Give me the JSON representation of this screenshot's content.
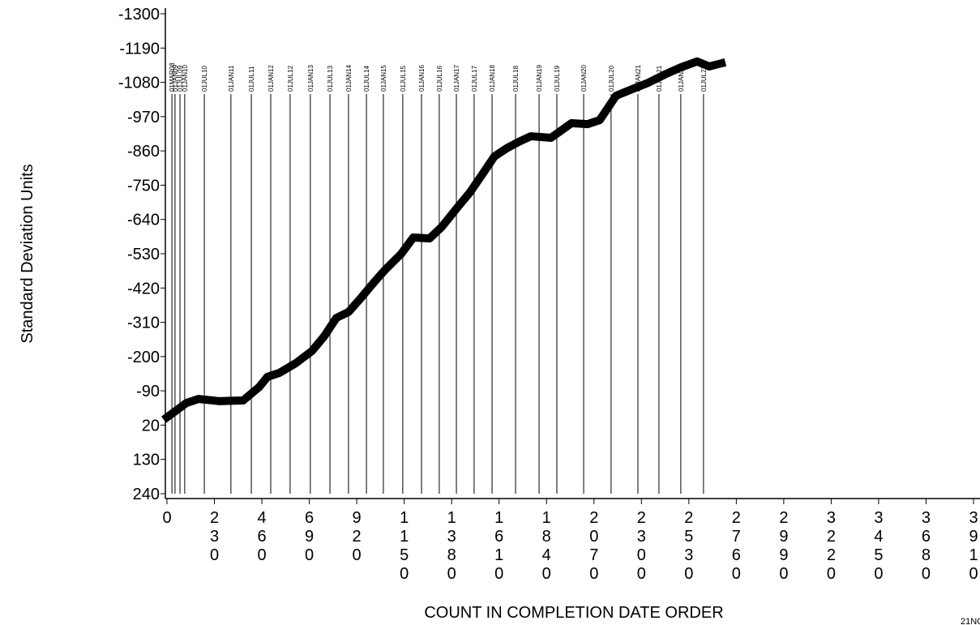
{
  "chart_data": {
    "type": "line",
    "y_label": "Standard Deviation Units",
    "x_label": "COUNT IN COMPLETION DATE ORDER",
    "footnote": "21NO",
    "ylim": [
      240,
      -1300
    ],
    "yticks": [
      -1300,
      -1190,
      -1080,
      -970,
      -860,
      -750,
      -640,
      -530,
      -420,
      -310,
      -200,
      -90,
      20,
      130,
      240
    ],
    "xlim": [
      0,
      3910
    ],
    "xticks": [
      0,
      230,
      460,
      690,
      920,
      1150,
      1380,
      1610,
      1840,
      2070,
      2300,
      2530,
      2760,
      2990,
      3220,
      3450,
      3680,
      3910
    ],
    "x": [
      0,
      94,
      153,
      251,
      369,
      448,
      487,
      546,
      625,
      703,
      762,
      821,
      880,
      939,
      998,
      1057,
      1136,
      1194,
      1273,
      1332,
      1411,
      1470,
      1529,
      1587,
      1646,
      1705,
      1764,
      1862,
      1961,
      2039,
      2098,
      2177,
      2255,
      2334,
      2413,
      2491,
      2570,
      2629,
      2688
    ],
    "series": [
      {
        "color": "#000000",
        "values": [
          -5,
          -51,
          -64,
          -57,
          -59,
          -103,
          -135,
          -148,
          -179,
          -218,
          -265,
          -324,
          -343,
          -387,
          -434,
          -478,
          -530,
          -582,
          -579,
          -616,
          -681,
          -728,
          -785,
          -842,
          -868,
          -889,
          -907,
          -902,
          -949,
          -946,
          -959,
          -1037,
          -1058,
          -1079,
          -1105,
          -1128,
          -1147,
          -1131,
          -1141
        ]
      }
    ],
    "reference_lines": [
      {
        "x": 24,
        "label": "01MAR08"
      },
      {
        "x": 39,
        "label": "01JAN09"
      },
      {
        "x": 63,
        "label": "01JUL09"
      },
      {
        "x": 86,
        "label": "01JAN10"
      },
      {
        "x": 181,
        "label": "01JUL10"
      },
      {
        "x": 310,
        "label": "01JAN11"
      },
      {
        "x": 409,
        "label": "01JUL11"
      },
      {
        "x": 503,
        "label": "01JAN12"
      },
      {
        "x": 597,
        "label": "01JUL12"
      },
      {
        "x": 695,
        "label": "01JAN13"
      },
      {
        "x": 790,
        "label": "01JUL13"
      },
      {
        "x": 880,
        "label": "01JAN14"
      },
      {
        "x": 967,
        "label": "01JUL14"
      },
      {
        "x": 1049,
        "label": "01JAN15"
      },
      {
        "x": 1143,
        "label": "01JUL15"
      },
      {
        "x": 1234,
        "label": "01JAN16"
      },
      {
        "x": 1320,
        "label": "01JUL16"
      },
      {
        "x": 1403,
        "label": "01JAN17"
      },
      {
        "x": 1489,
        "label": "01JUL17"
      },
      {
        "x": 1576,
        "label": "01JAN18"
      },
      {
        "x": 1690,
        "label": "01JUL18"
      },
      {
        "x": 1804,
        "label": "01JAN19"
      },
      {
        "x": 1890,
        "label": "01JUL19"
      },
      {
        "x": 2020,
        "label": "01JAN20"
      },
      {
        "x": 2153,
        "label": "01JUL20"
      },
      {
        "x": 2283,
        "label": "01JAN21"
      },
      {
        "x": 2385,
        "label": "01JUL21"
      },
      {
        "x": 2491,
        "label": "01JAN22"
      },
      {
        "x": 2601,
        "label": "01JUL22"
      }
    ]
  }
}
